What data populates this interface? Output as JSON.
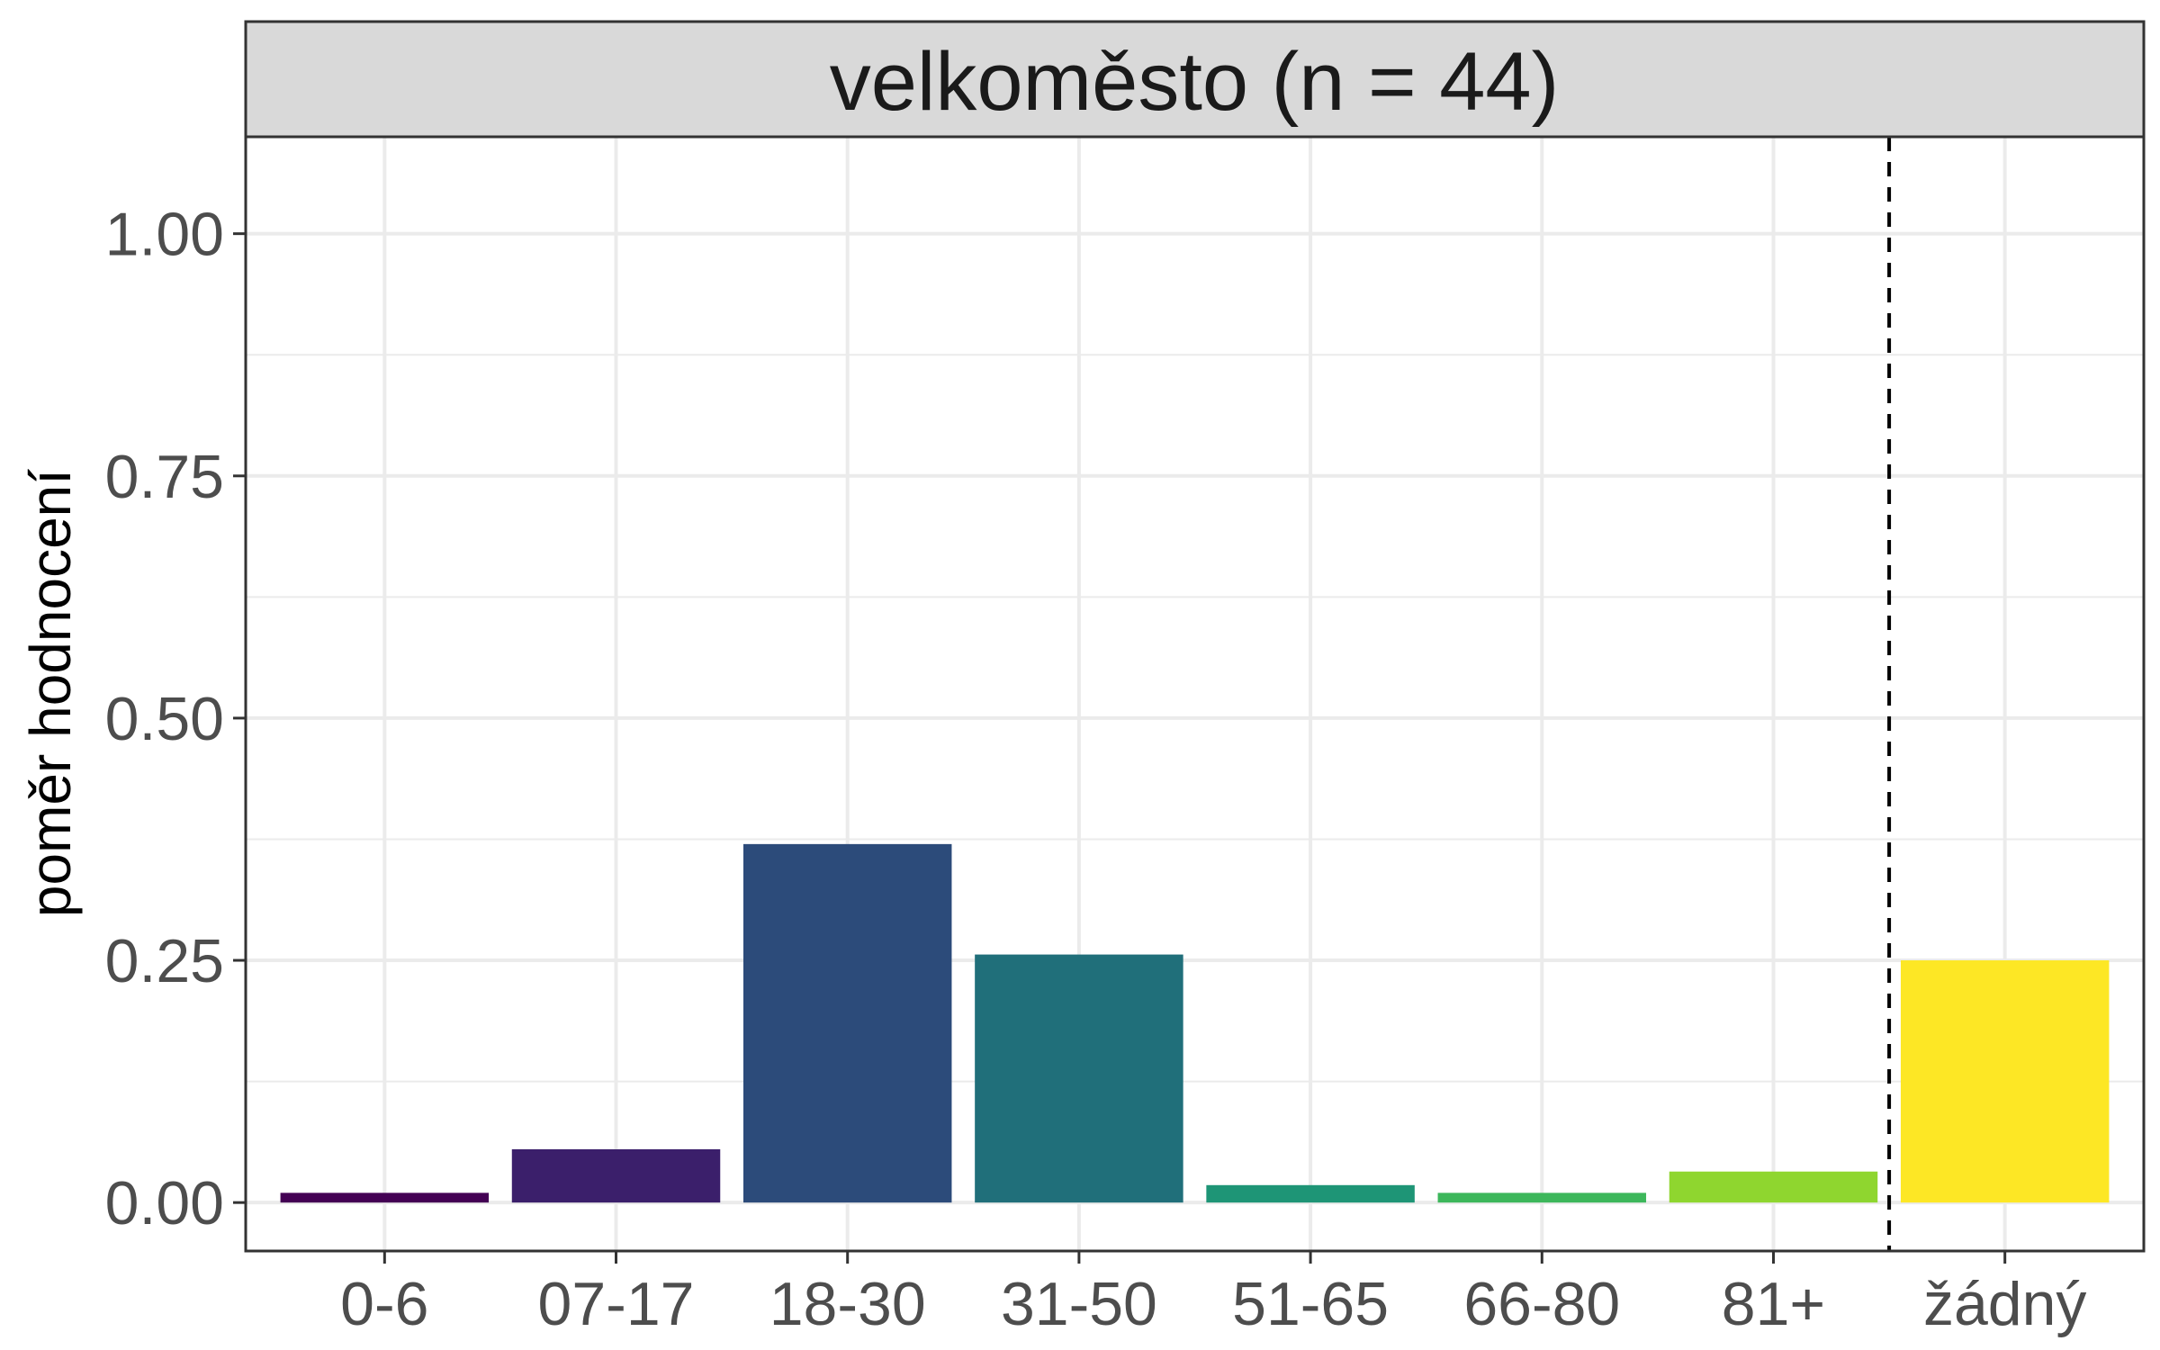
{
  "chart_data": {
    "type": "bar",
    "facet_title": "velkoměsto (n = 44)",
    "xlabel": "",
    "ylabel": "poměr hodnocení",
    "ylim": [
      -0.05,
      1.1
    ],
    "y_ticks": [
      0.0,
      0.25,
      0.5,
      0.75,
      1.0
    ],
    "y_tick_labels": [
      "0.00",
      "0.25",
      "0.50",
      "0.75",
      "1.00"
    ],
    "y_minor_ticks": [
      0.125,
      0.375,
      0.625,
      0.875
    ],
    "categories": [
      "0-6",
      "07-17",
      "18-30",
      "31-50",
      "51-65",
      "66-80",
      "81+",
      "žádný"
    ],
    "values": [
      0.01,
      0.055,
      0.37,
      0.256,
      0.018,
      0.01,
      0.032,
      0.25
    ],
    "colors": [
      "#440154",
      "#3b1f6b",
      "#2c4b7a",
      "#206f7a",
      "#1e9576",
      "#3db75b",
      "#8fd62f",
      "#fde725"
    ],
    "separator_after_index": 6,
    "separator_style": "dashed",
    "grid": true
  }
}
